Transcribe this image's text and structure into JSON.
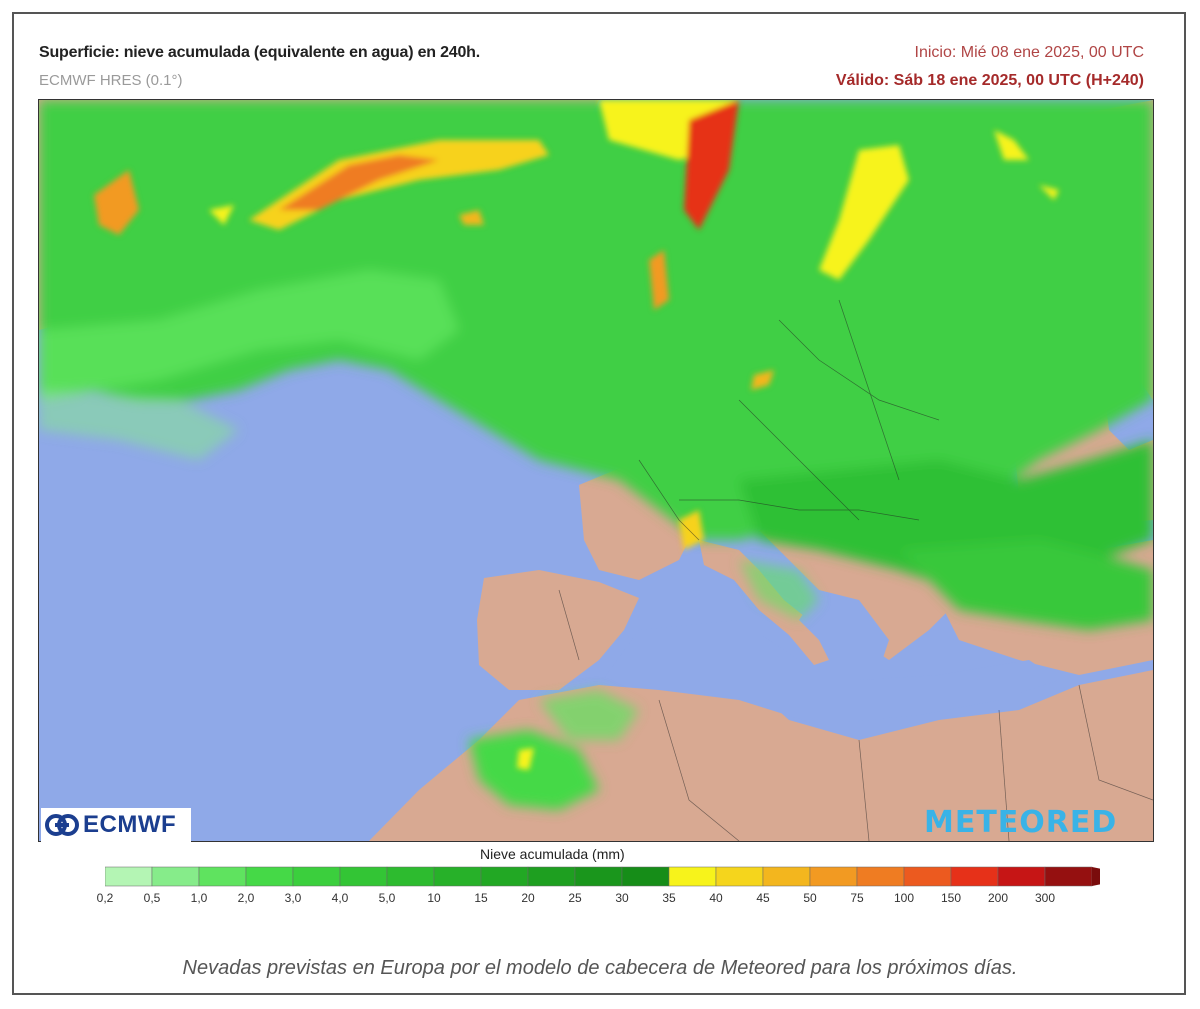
{
  "header": {
    "title": "Superficie: nieve acumulada (equivalente en agua) en 240h.",
    "model": "ECMWF HRES (0.1°)",
    "init": "Inicio: Mié 08 ene 2025, 00 UTC",
    "valid": "Válido: Sáb 18 ene 2025, 00 UTC (H+240)"
  },
  "logos": {
    "ecmwf": "ECMWF",
    "meteored": "METEORED"
  },
  "legend": {
    "title": "Nieve acumulada (mm)",
    "labels": [
      "0,2",
      "0,5",
      "1,0",
      "2,0",
      "3,0",
      "4,0",
      "5,0",
      "10",
      "15",
      "20",
      "25",
      "30",
      "35",
      "40",
      "45",
      "50",
      "75",
      "100",
      "150",
      "200",
      "300"
    ],
    "colors": [
      "#b4f5b4",
      "#86ec8a",
      "#5fe35f",
      "#45d947",
      "#3bcf3d",
      "#33c535",
      "#2dbb2f",
      "#27b129",
      "#22a824",
      "#1e9f20",
      "#1a961c",
      "#168d18",
      "#f7f31b",
      "#f5d51c",
      "#f3b61e",
      "#f29a22",
      "#ef7c22",
      "#ec5a1f",
      "#e63119",
      "#c61515",
      "#951010"
    ]
  },
  "caption": "Nevadas previstas en Europa por el modelo de cabecera de Meteored para los próximos días."
}
